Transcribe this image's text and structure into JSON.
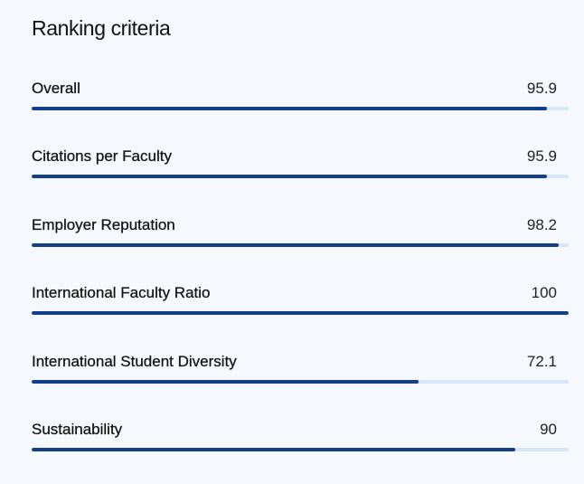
{
  "section": {
    "title": "Ranking criteria"
  },
  "criteria": [
    {
      "label": "Overall",
      "value": "95.9",
      "progress": 95.9
    },
    {
      "label": "Citations per Faculty",
      "value": "95.9",
      "progress": 95.9
    },
    {
      "label": "Employer Reputation",
      "value": "98.2",
      "progress": 98.2
    },
    {
      "label": "International Faculty Ratio",
      "value": "100",
      "progress": 100
    },
    {
      "label": "International Student Diversity",
      "value": "72.1",
      "progress": 72.1
    },
    {
      "label": "Sustainability",
      "value": "90",
      "progress": 90
    }
  ],
  "colors": {
    "background": "#f5f8fd",
    "bar_fill": "#163f8a",
    "bar_track": "#d6e5f8",
    "text": "#111111"
  }
}
